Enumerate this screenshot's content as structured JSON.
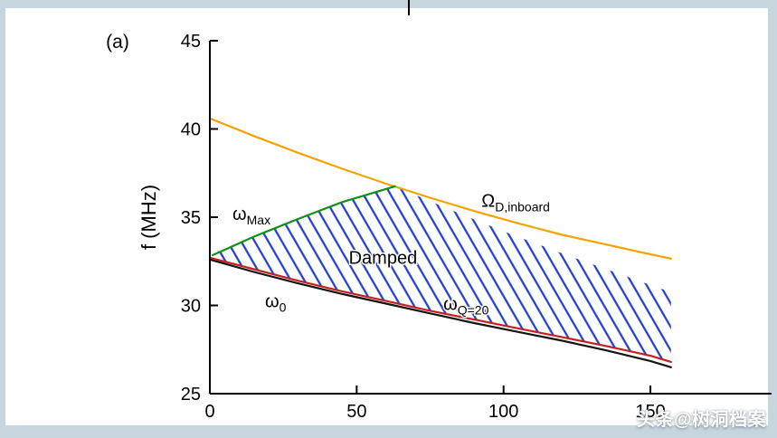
{
  "panel_label": "(a)",
  "watermark": "头条@树洞档案",
  "axes": {
    "ylabel": "f (MHz)",
    "yticks": [
      25,
      30,
      35,
      40,
      45
    ],
    "xticks": [
      0,
      50,
      100,
      150
    ],
    "xlim": [
      0,
      157
    ],
    "ylim": [
      25,
      45
    ]
  },
  "chart_data": {
    "type": "line",
    "title": "",
    "xlabel": "",
    "ylabel": "f (MHz)",
    "xlim": [
      0,
      157
    ],
    "ylim": [
      25,
      45
    ],
    "grid": false,
    "legend": "none (inline annotations)",
    "series": [
      {
        "name": "Omega_D_inboard",
        "label": "Ω_D,inboard",
        "color": "#F5A300",
        "x": [
          0,
          15,
          30,
          45,
          60,
          75,
          90,
          105,
          120,
          135,
          150,
          157
        ],
        "y": [
          40.6,
          39.6,
          38.65,
          37.75,
          36.9,
          36.1,
          35.35,
          34.65,
          34.0,
          33.45,
          32.9,
          32.65
        ]
      },
      {
        "name": "omega_Max",
        "label": "ω_Max",
        "color": "#109010",
        "x": [
          1,
          15,
          30,
          45,
          63
        ],
        "y": [
          32.85,
          33.9,
          34.9,
          35.85,
          36.75
        ]
      },
      {
        "name": "omega_0",
        "label": "ω_0",
        "color": "#141414",
        "x": [
          0,
          15,
          30,
          45,
          60,
          75,
          90,
          105,
          120,
          135,
          150,
          157
        ],
        "y": [
          32.6,
          31.9,
          31.25,
          30.65,
          30.1,
          29.55,
          29.0,
          28.5,
          28.0,
          27.45,
          26.85,
          26.5
        ]
      },
      {
        "name": "omega_Q20",
        "label": "ω_Q=20",
        "color": "#C42020",
        "x": [
          0,
          15,
          30,
          45,
          60,
          75,
          90,
          105,
          120,
          135,
          150,
          157
        ],
        "y": [
          32.7,
          32.05,
          31.4,
          30.8,
          30.25,
          29.7,
          29.2,
          28.7,
          28.2,
          27.7,
          27.15,
          26.8
        ]
      }
    ],
    "damped_region": {
      "label": "Damped",
      "hatch_color": "#2440CC",
      "boundary": [
        [
          1,
          32.85
        ],
        [
          15,
          33.9
        ],
        [
          30,
          34.9
        ],
        [
          45,
          35.85
        ],
        [
          63,
          36.75
        ],
        [
          80,
          35.55
        ],
        [
          100,
          34.2
        ],
        [
          120,
          32.95
        ],
        [
          140,
          31.75
        ],
        [
          157,
          30.75
        ],
        [
          157,
          26.8
        ],
        [
          135,
          27.7
        ],
        [
          120,
          28.2
        ],
        [
          105,
          28.7
        ],
        [
          90,
          29.2
        ],
        [
          75,
          29.7
        ],
        [
          60,
          30.25
        ],
        [
          45,
          30.8
        ],
        [
          30,
          31.4
        ],
        [
          15,
          32.05
        ],
        [
          1,
          32.72
        ]
      ]
    },
    "annotations": [
      {
        "name": "omega-max-label",
        "main": "ω",
        "sub": "Max",
        "x": 7.7,
        "y": 34.85
      },
      {
        "name": "omega-d-inboard-label",
        "main": "Ω",
        "sub": "D,inboard",
        "x": 92.5,
        "y": 35.6
      },
      {
        "name": "damped-label",
        "main": "Damped",
        "sub": "",
        "x": 47.3,
        "y": 32.35
      },
      {
        "name": "omega-0-label",
        "main": "ω",
        "sub": "0",
        "x": 18.8,
        "y": 29.9
      },
      {
        "name": "omega-q20-label",
        "main": "ω",
        "sub": "Q=20",
        "x": 79.5,
        "y": 29.75
      }
    ]
  }
}
